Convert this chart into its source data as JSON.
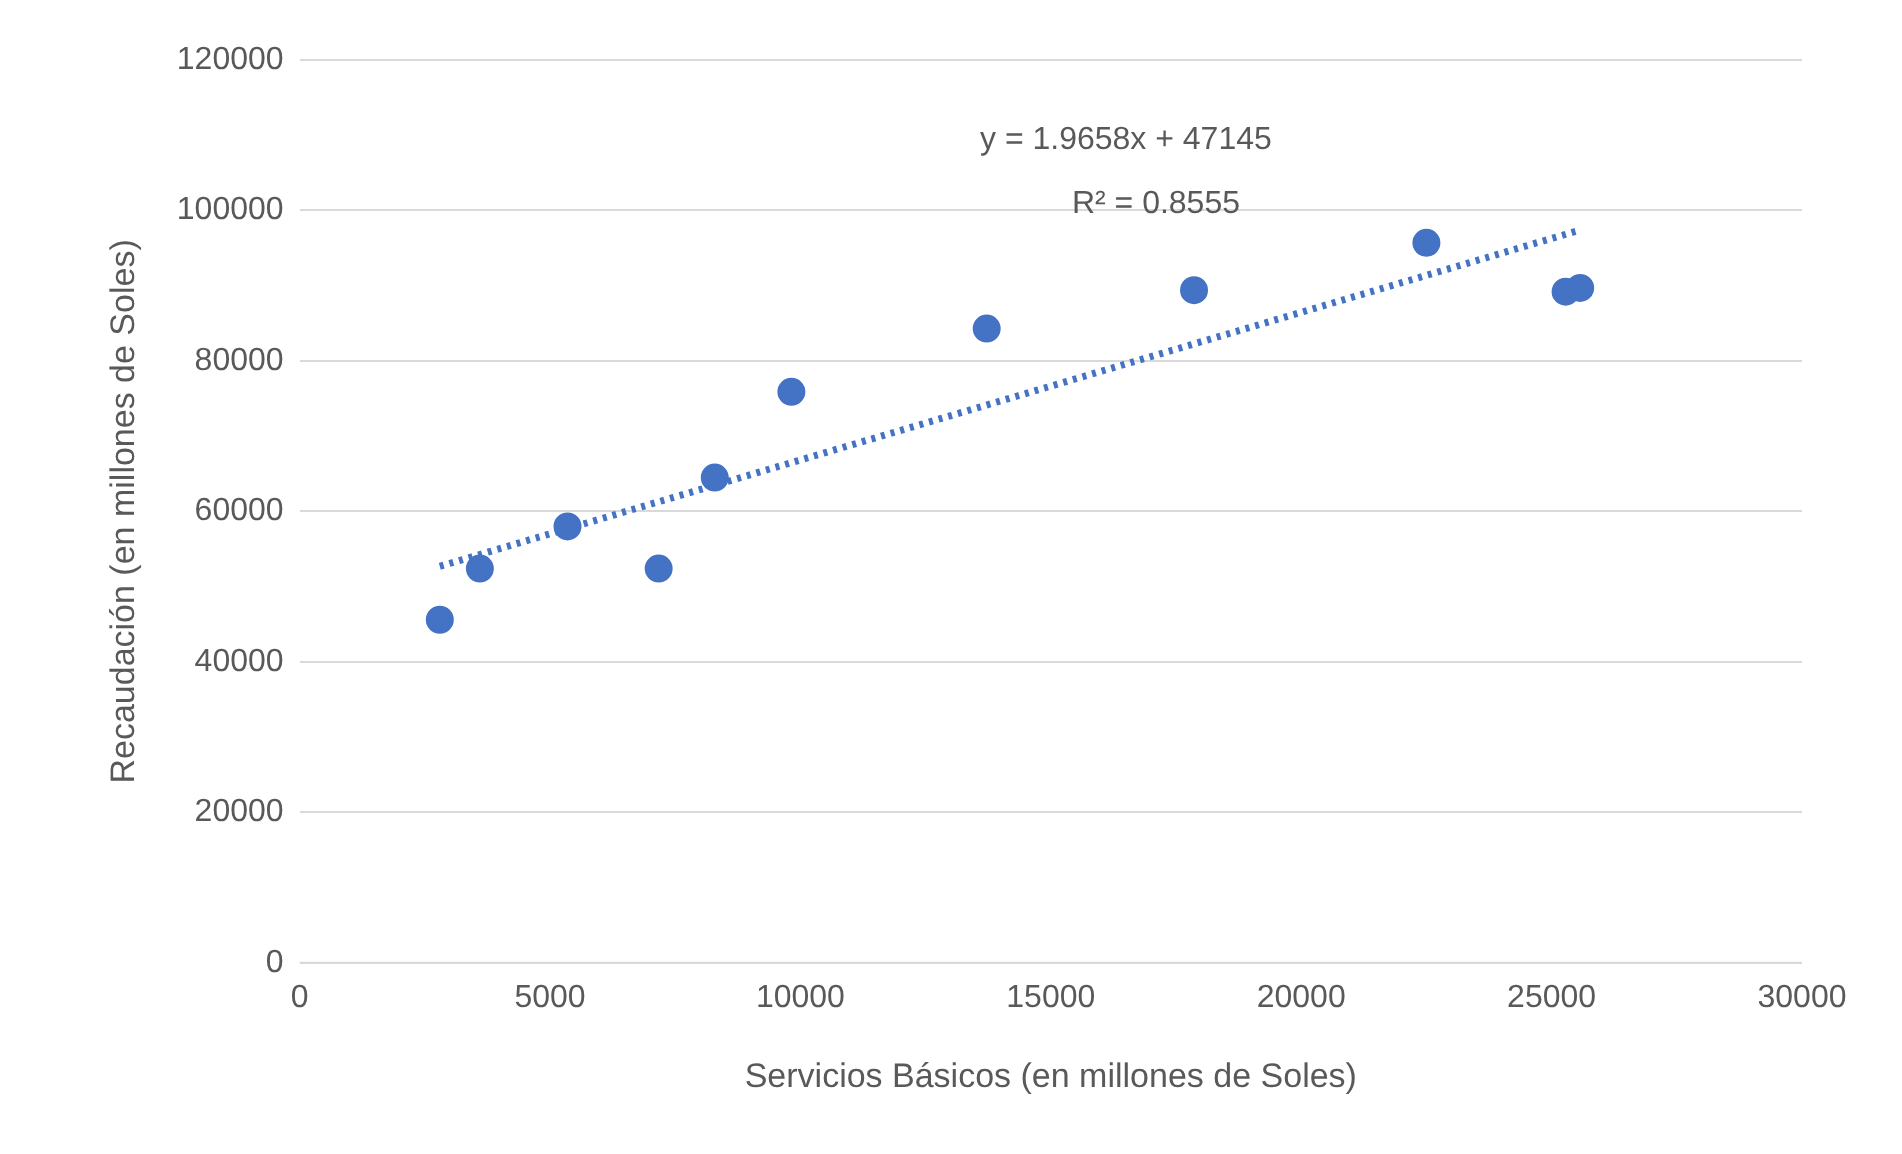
{
  "chart_data": {
    "type": "scatter",
    "xlabel": "Servicios Básicos (en millones de Soles)",
    "ylabel": "Recaudación (en millones de Soles)",
    "xlim": [
      0,
      30000
    ],
    "xticks": [
      0,
      5000,
      10000,
      15000,
      20000,
      25000,
      30000
    ],
    "ylim": [
      0,
      120000
    ],
    "yticks": [
      0,
      20000,
      40000,
      60000,
      80000,
      100000,
      120000
    ],
    "grid": "y",
    "series": [
      {
        "type": "scatter",
        "marker": "circle",
        "color": "#4472c4",
        "x": [
          2800,
          3600,
          5350,
          7170,
          8290,
          9820,
          13720,
          17860,
          22500,
          25280,
          25570
        ],
        "values": [
          45600,
          52400,
          58000,
          52400,
          64500,
          75900,
          84300,
          89400,
          95700,
          89200,
          89700
        ]
      },
      {
        "type": "line",
        "marker": "none",
        "color": "#4472c4",
        "line_style": "dotted",
        "x": [
          2800,
          25570
        ],
        "values": [
          52700,
          97400
        ]
      }
    ],
    "annotations": [
      "y = 1.9658x + 47145",
      "R² = 0.8555"
    ]
  }
}
